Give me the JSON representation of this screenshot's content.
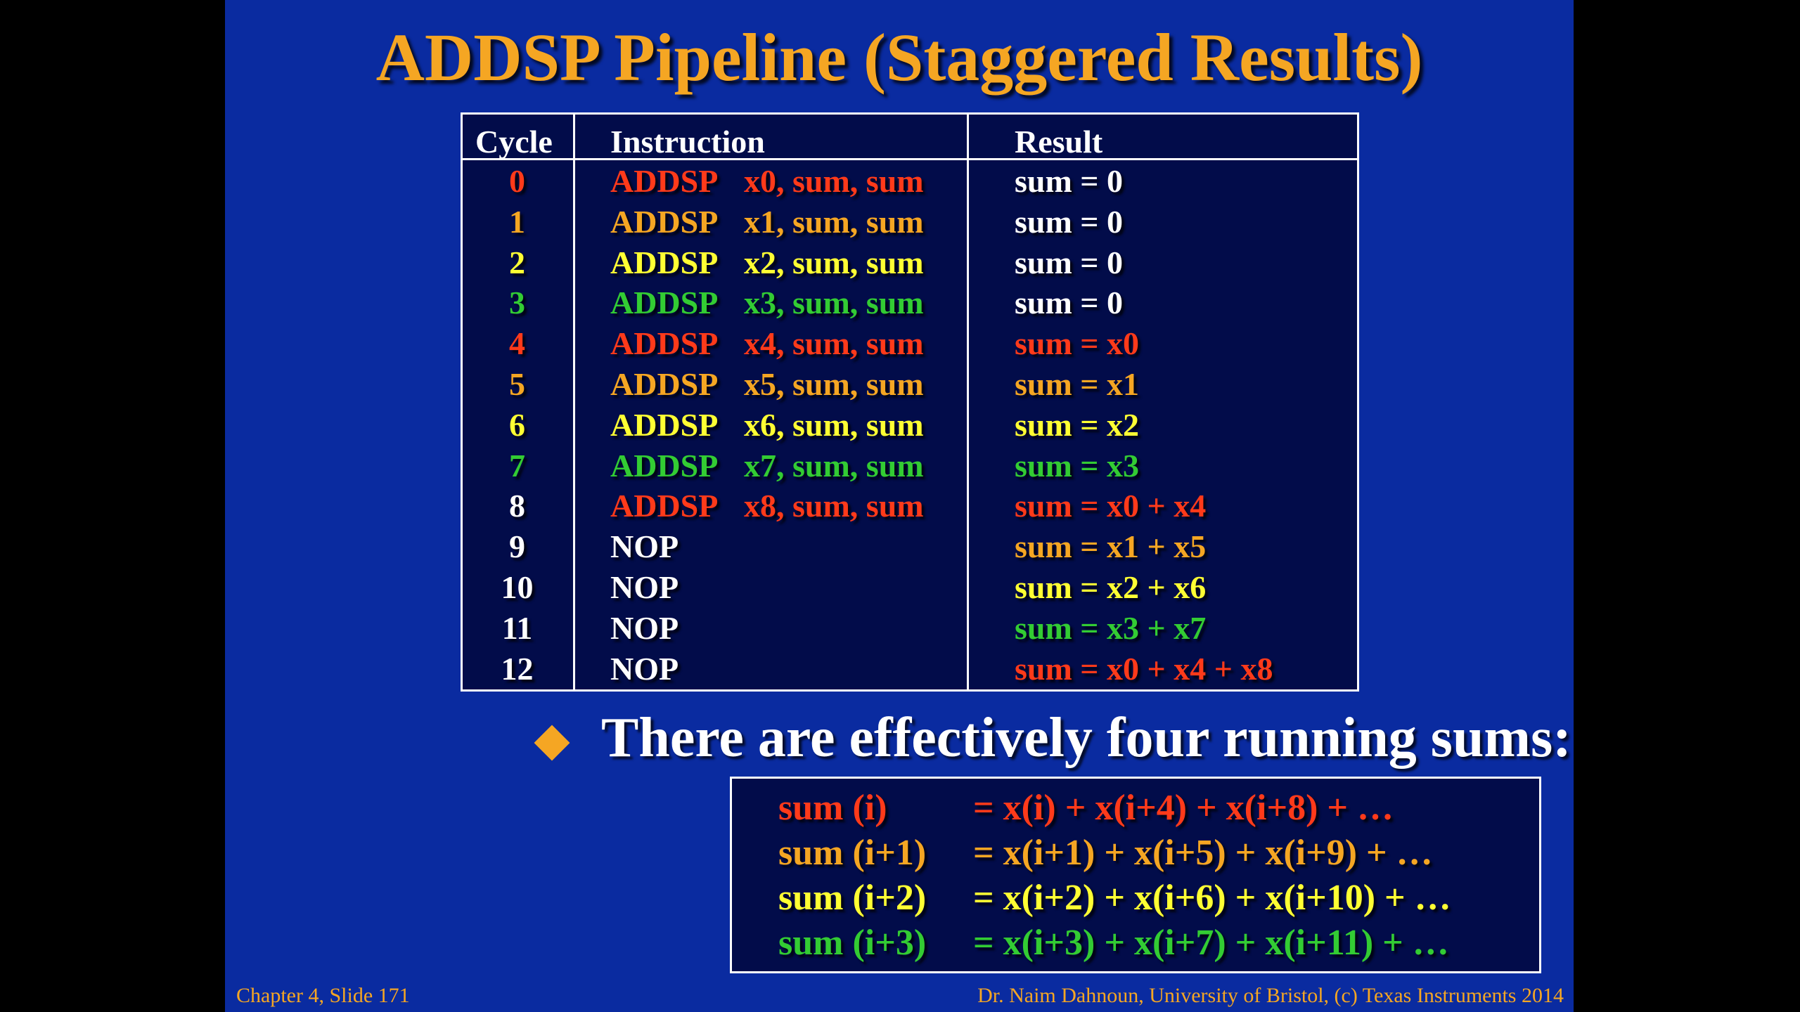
{
  "slide": {
    "title": "ADDSP Pipeline (Staggered Results)",
    "footer_left": "Chapter 4, Slide 171",
    "footer_right": "Dr. Naim Dahnoun, University of Bristol,  (c) Texas Instruments 2014"
  },
  "colors": {
    "background": "#0a2ba0",
    "box_background": "#020c4a",
    "red": "#ff3a1a",
    "orange": "#f5a623",
    "yellow": "#ffff33",
    "green": "#33cc33",
    "white": "#ffffff"
  },
  "table": {
    "headers": {
      "cycle": "Cycle",
      "instruction": "Instruction",
      "result": "Result"
    },
    "rows": [
      {
        "cycle": "0",
        "op": "ADDSP",
        "args": "x0, sum, sum",
        "result": "sum = 0",
        "cycle_color": "#ff3a1a",
        "instr_color": "#ff3a1a",
        "result_color": "#ffffff"
      },
      {
        "cycle": "1",
        "op": "ADDSP",
        "args": "x1, sum, sum",
        "result": "sum = 0",
        "cycle_color": "#f5a623",
        "instr_color": "#f5a623",
        "result_color": "#ffffff"
      },
      {
        "cycle": "2",
        "op": "ADDSP",
        "args": "x2, sum, sum",
        "result": "sum = 0",
        "cycle_color": "#ffff33",
        "instr_color": "#ffff33",
        "result_color": "#ffffff"
      },
      {
        "cycle": "3",
        "op": "ADDSP",
        "args": "x3, sum, sum",
        "result": "sum = 0",
        "cycle_color": "#33cc33",
        "instr_color": "#33cc33",
        "result_color": "#ffffff"
      },
      {
        "cycle": "4",
        "op": "ADDSP",
        "args": "x4, sum, sum",
        "result": "sum = x0",
        "cycle_color": "#ff3a1a",
        "instr_color": "#ff3a1a",
        "result_color": "#ff3a1a"
      },
      {
        "cycle": "5",
        "op": "ADDSP",
        "args": "x5, sum, sum",
        "result": "sum = x1",
        "cycle_color": "#f5a623",
        "instr_color": "#f5a623",
        "result_color": "#f5a623"
      },
      {
        "cycle": "6",
        "op": "ADDSP",
        "args": "x6, sum, sum",
        "result": "sum = x2",
        "cycle_color": "#ffff33",
        "instr_color": "#ffff33",
        "result_color": "#ffff33"
      },
      {
        "cycle": "7",
        "op": "ADDSP",
        "args": "x7, sum, sum",
        "result": "sum = x3",
        "cycle_color": "#33cc33",
        "instr_color": "#33cc33",
        "result_color": "#33cc33"
      },
      {
        "cycle": "8",
        "op": "ADDSP",
        "args": "x8, sum, sum",
        "result": "sum = x0 + x4",
        "cycle_color": "#ffffff",
        "instr_color": "#ff3a1a",
        "result_color": "#ff3a1a"
      },
      {
        "cycle": "9",
        "op": "NOP",
        "args": "",
        "result": "sum = x1 + x5",
        "cycle_color": "#ffffff",
        "instr_color": "#ffffff",
        "result_color": "#f5a623"
      },
      {
        "cycle": "10",
        "op": "NOP",
        "args": "",
        "result": "sum = x2 + x6",
        "cycle_color": "#ffffff",
        "instr_color": "#ffffff",
        "result_color": "#ffff33"
      },
      {
        "cycle": "11",
        "op": "NOP",
        "args": "",
        "result": "sum = x3 + x7",
        "cycle_color": "#ffffff",
        "instr_color": "#ffffff",
        "result_color": "#33cc33"
      },
      {
        "cycle": "12",
        "op": "NOP",
        "args": "",
        "result": "sum = x0 + x4 + x8",
        "cycle_color": "#ffffff",
        "instr_color": "#ffffff",
        "result_color": "#ff3a1a"
      }
    ]
  },
  "bullet": {
    "icon": "diamond-bullet-icon",
    "text": "There are effectively four running sums:"
  },
  "sums": [
    {
      "name": "sum (i)",
      "expr": "= x(i) + x(i+4) + x(i+8) + …",
      "color": "#ff3a1a"
    },
    {
      "name": "sum (i+1)",
      "expr": "= x(i+1) + x(i+5) + x(i+9) + …",
      "color": "#f5a623"
    },
    {
      "name": "sum (i+2)",
      "expr": "= x(i+2) + x(i+6) + x(i+10) + …",
      "color": "#ffff33"
    },
    {
      "name": "sum (i+3)",
      "expr": "= x(i+3) + x(i+7) + x(i+11) + …",
      "color": "#33cc33"
    }
  ]
}
